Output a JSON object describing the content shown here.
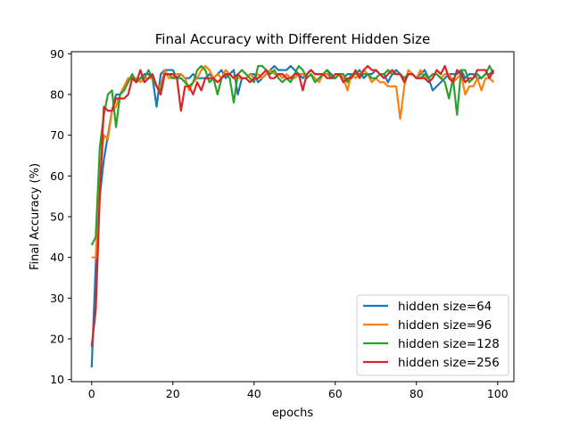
{
  "chart_data": {
    "type": "line",
    "title": "Final Accuracy with Different Hidden Size",
    "xlabel": "epochs",
    "ylabel": "Final Accuracy (%)",
    "xlim": [
      -5,
      104
    ],
    "ylim": [
      9.5,
      90.5
    ],
    "xticks": [
      0,
      20,
      40,
      60,
      80,
      100
    ],
    "yticks": [
      10,
      20,
      30,
      40,
      50,
      60,
      70,
      80,
      90
    ],
    "grid": false,
    "legend_position": "lower-right",
    "series": [
      {
        "name": "hidden size=64",
        "color": "#1f77b4",
        "values": [
          13,
          38,
          55,
          64,
          70,
          76,
          80,
          80,
          82,
          84,
          84,
          83,
          84,
          85,
          85,
          84,
          77,
          85,
          86,
          86,
          86,
          84,
          85,
          84,
          84,
          85,
          84,
          84,
          84,
          85,
          84,
          85,
          86,
          84,
          85,
          86,
          80,
          84,
          84,
          85,
          85,
          83,
          84,
          85,
          86,
          87,
          86,
          86,
          86,
          87,
          86,
          85,
          84,
          85,
          86,
          85,
          85,
          85,
          86,
          85,
          84,
          85,
          84,
          85,
          85,
          85,
          86,
          84,
          85,
          85,
          86,
          85,
          85,
          83,
          85,
          86,
          85,
          84,
          85,
          85,
          84,
          85,
          86,
          84,
          81,
          82,
          83,
          84,
          85,
          85,
          85,
          86,
          84,
          85,
          85,
          84,
          84,
          85,
          85,
          86
        ]
      },
      {
        "name": "hidden size=96",
        "color": "#ff7f0e",
        "values": [
          40,
          40,
          60,
          70,
          69,
          76,
          77,
          80,
          82,
          84,
          84,
          84,
          83,
          84,
          84,
          84,
          82,
          82,
          86,
          84,
          84,
          85,
          85,
          84,
          81,
          83,
          84,
          86,
          87,
          86,
          84,
          85,
          84,
          86,
          85,
          84,
          84,
          84,
          84,
          85,
          84,
          85,
          84,
          85,
          86,
          85,
          85,
          84,
          85,
          84,
          84,
          85,
          85,
          84,
          85,
          84,
          83,
          85,
          85,
          84,
          84,
          85,
          84,
          81,
          85,
          84,
          85,
          86,
          85,
          83,
          84,
          83,
          83,
          82,
          82,
          82,
          74,
          82,
          86,
          85,
          84,
          86,
          84,
          84,
          85,
          85,
          84,
          85,
          85,
          83,
          84,
          85,
          80,
          82,
          82,
          84,
          81,
          84,
          84,
          83
        ]
      },
      {
        "name": "hidden size=128",
        "color": "#2ca02c",
        "values": [
          43,
          45,
          67,
          75,
          80,
          81,
          72,
          80,
          81,
          83,
          85,
          83,
          84,
          84,
          86,
          84,
          82,
          81,
          85,
          85,
          84,
          84,
          84,
          83,
          82,
          83,
          86,
          87,
          86,
          83,
          84,
          80,
          84,
          85,
          84,
          78,
          85,
          86,
          85,
          84,
          83,
          87,
          87,
          86,
          85,
          86,
          84,
          83,
          84,
          83,
          85,
          87,
          86,
          84,
          85,
          83,
          84,
          85,
          86,
          84,
          84,
          85,
          85,
          83,
          85,
          85,
          85,
          85,
          85,
          84,
          84,
          85,
          85,
          86,
          85,
          85,
          85,
          84,
          85,
          85,
          84,
          84,
          85,
          84,
          85,
          85,
          84,
          83,
          79,
          84,
          75,
          86,
          86,
          83,
          84,
          85,
          84,
          85,
          87,
          85
        ]
      },
      {
        "name": "hidden size=256",
        "color": "#d62728",
        "values": [
          18,
          27,
          55,
          77,
          76,
          76,
          79,
          79,
          79,
          80,
          84,
          83,
          86,
          83,
          84,
          85,
          82,
          80,
          85,
          85,
          85,
          84,
          76,
          82,
          82,
          80,
          83,
          81,
          84,
          84,
          84,
          83,
          84,
          85,
          85,
          84,
          85,
          84,
          84,
          83,
          84,
          84,
          85,
          86,
          84,
          84,
          85,
          85,
          84,
          84,
          85,
          85,
          81,
          85,
          86,
          85,
          85,
          85,
          84,
          84,
          85,
          85,
          83,
          84,
          84,
          86,
          84,
          86,
          87,
          86,
          86,
          85,
          84,
          85,
          86,
          85,
          85,
          83,
          85,
          85,
          84,
          84,
          84,
          83,
          84,
          86,
          85,
          87,
          84,
          83,
          86,
          85,
          83,
          84,
          84,
          86,
          86,
          86,
          84,
          86
        ]
      }
    ]
  }
}
